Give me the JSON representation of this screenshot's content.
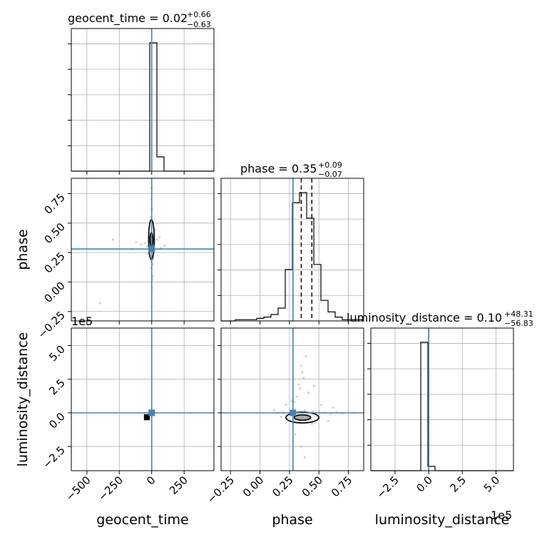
{
  "chart_data": {
    "type": "corner",
    "parameters": [
      "geocent_time",
      "phase",
      "luminosity_distance"
    ],
    "truths": {
      "geocent_time": 0,
      "phase": 0.28,
      "luminosity_distance": 0
    },
    "truth_color": "#4682b4",
    "grid": true,
    "titles": {
      "geocent_time": {
        "prefix": "geocent_time = 0.02",
        "plus": "+0.66",
        "minus": "−0.63"
      },
      "phase": {
        "prefix": "phase = 0.35",
        "plus": "+0.09",
        "minus": "−0.07"
      },
      "luminosity_distance": {
        "prefix": "luminosity_distance = 0.10",
        "plus": "+48.31",
        "minus": "−56.83"
      }
    },
    "offset_labels": {
      "luminosity_distance_y": "1e5",
      "luminosity_distance_x": "1e5"
    },
    "axes": {
      "geocent_time": {
        "range": [
          -620,
          480
        ],
        "ticks": [
          -500,
          -250,
          0,
          250
        ],
        "tick_labels": [
          "−500",
          "−250",
          "0",
          "250"
        ]
      },
      "phase": {
        "range": [
          -0.33,
          0.88
        ],
        "ticks": [
          -0.25,
          0.0,
          0.25,
          0.5,
          0.75
        ],
        "tick_labels": [
          "−0.25",
          "0.00",
          "0.25",
          "0.50",
          "0.75"
        ]
      },
      "luminosity_distance": {
        "range": [
          -4.3,
          6.3
        ],
        "ticks": [
          -2.5,
          0.0,
          2.5,
          5.0
        ],
        "tick_labels": [
          "−2.5",
          "0.0",
          "2.5",
          "5.0"
        ]
      }
    },
    "histograms": {
      "geocent_time": {
        "bin_edges": [
          -620,
          -565,
          -510,
          -455,
          -400,
          -345,
          -290,
          -235,
          -180,
          -125,
          -70,
          -15,
          40,
          95,
          150,
          205,
          260,
          315,
          370,
          425,
          480
        ],
        "counts": [
          0,
          0,
          0,
          0,
          0,
          0,
          0,
          0,
          0,
          0,
          0,
          0.9,
          0.1,
          0,
          0,
          0,
          0,
          0,
          0,
          0
        ],
        "quantiles": [
          0.02
        ]
      },
      "phase": {
        "bin_edges": [
          -0.33,
          -0.2695,
          -0.209,
          -0.1485,
          -0.088,
          -0.0275,
          0.033,
          0.0935,
          0.154,
          0.2145,
          0.275,
          0.3355,
          0.396,
          0.4565,
          0.517,
          0.5775,
          0.638,
          0.6985,
          0.759,
          0.8195,
          0.88
        ],
        "counts": [
          0,
          0,
          0.01,
          0.01,
          0.01,
          0.02,
          0.03,
          0.05,
          0.1,
          0.4,
          0.92,
          1.0,
          0.8,
          0.44,
          0.16,
          0.07,
          0.03,
          0.01,
          0.01,
          0.01
        ],
        "quantiles": [
          0.28,
          0.35,
          0.44
        ]
      },
      "luminosity_distance": {
        "bin_edges": [
          -4.3,
          -3.77,
          -3.24,
          -2.71,
          -2.18,
          -1.65,
          -1.12,
          -0.59,
          -0.06,
          0.47,
          1.0,
          1.53,
          2.06,
          2.59,
          3.12,
          3.65,
          4.18,
          4.71,
          5.24,
          5.77,
          6.3
        ],
        "counts": [
          0,
          0,
          0,
          0,
          0,
          0,
          0,
          0.9,
          0.03,
          0,
          0,
          0,
          0,
          0,
          0,
          0,
          0,
          0,
          0,
          0
        ],
        "quantiles": [
          0.0
        ]
      }
    },
    "scatter": {
      "geocent_time_phase": [
        [
          -3,
          0.41
        ],
        [
          2,
          0.39
        ],
        [
          6,
          0.33
        ],
        [
          -8,
          0.3
        ],
        [
          10,
          0.28
        ],
        [
          -12,
          0.45
        ],
        [
          4,
          0.22
        ],
        [
          -6,
          0.36
        ],
        [
          15,
          0.25
        ],
        [
          -2,
          0.5
        ],
        [
          8,
          0.19
        ],
        [
          -15,
          0.38
        ],
        [
          1,
          0.62
        ],
        [
          -4,
          0.12
        ],
        [
          12,
          0.42
        ],
        [
          -10,
          0.27
        ],
        [
          5,
          0.05
        ],
        [
          -1,
          0.7
        ],
        [
          20,
          0.34
        ],
        [
          -20,
          0.31
        ],
        [
          -50,
          0.33
        ],
        [
          40,
          0.36
        ],
        [
          -35,
          0.3
        ],
        [
          60,
          0.38
        ],
        [
          -80,
          0.32
        ],
        [
          70,
          0.29
        ],
        [
          -120,
          0.34
        ],
        [
          100,
          0.31
        ],
        [
          -300,
          0.36
        ],
        [
          -150,
          0.28
        ],
        [
          0,
          0.8
        ],
        [
          2,
          -0.05
        ],
        [
          -5,
          0.55
        ],
        [
          7,
          0.15
        ],
        [
          25,
          0.44
        ],
        [
          -28,
          0.24
        ],
        [
          -400,
          -0.18
        ],
        [
          3,
          0.02
        ],
        [
          -9,
          0.47
        ],
        [
          11,
          0.21
        ]
      ],
      "geocent_time_luminosity_distance": [
        [
          -5,
          -0.2
        ],
        [
          5,
          -0.1
        ],
        [
          -10,
          0.05
        ],
        [
          10,
          0.1
        ],
        [
          0,
          0.0
        ],
        [
          -15,
          -0.3
        ],
        [
          15,
          0.2
        ],
        [
          -3,
          -0.15
        ]
      ],
      "phase_luminosity_distance": [
        [
          0.32,
          -0.4
        ],
        [
          0.36,
          -0.3
        ],
        [
          0.4,
          -0.2
        ],
        [
          0.28,
          -0.1
        ],
        [
          0.45,
          0.1
        ],
        [
          0.5,
          0.05
        ],
        [
          0.3,
          -0.5
        ],
        [
          0.38,
          0.2
        ],
        [
          0.55,
          0.0
        ],
        [
          0.6,
          -0.1
        ],
        [
          0.25,
          0.0
        ],
        [
          0.42,
          -0.35
        ],
        [
          0.48,
          -0.25
        ],
        [
          0.34,
          -0.45
        ],
        [
          0.65,
          0.05
        ],
        [
          0.7,
          -0.05
        ],
        [
          0.2,
          0.02
        ],
        [
          0.15,
          0.0
        ],
        [
          0.35,
          3.5
        ],
        [
          0.37,
          2.6
        ],
        [
          0.34,
          1.8
        ],
        [
          0.31,
          1.2
        ],
        [
          0.39,
          4.2
        ],
        [
          0.33,
          2.1
        ],
        [
          0.36,
          3.0
        ],
        [
          0.29,
          0.8
        ],
        [
          0.41,
          1.5
        ],
        [
          0.35,
          -2.5
        ],
        [
          0.38,
          -3.3
        ],
        [
          0.3,
          -1.6
        ],
        [
          0.44,
          -0.8
        ],
        [
          0.27,
          0.9
        ],
        [
          0.46,
          2.0
        ],
        [
          0.52,
          0.6
        ],
        [
          0.22,
          0.6
        ],
        [
          0.58,
          -0.6
        ],
        [
          0.62,
          0.4
        ],
        [
          0.12,
          0.2
        ],
        [
          0.18,
          -0.3
        ],
        [
          0.8,
          0.0
        ]
      ]
    },
    "contours": {
      "geocent_time_phase": {
        "center": [
          -2,
          0.36
        ],
        "levels": [
          [
            22,
            0.17
          ],
          [
            12,
            0.06
          ]
        ],
        "core": [
          [
            -6,
            0.33
          ],
          [
            2,
            0.4
          ]
        ]
      },
      "phase_luminosity_distance": {
        "center": [
          0.36,
          -0.35
        ],
        "levels": [
          [
            0.14,
            0.4
          ],
          [
            0.07,
            0.2
          ]
        ]
      },
      "geocent_time_luminosity_distance": {
        "core": [
          [
            -60,
            -0.55
          ],
          [
            -15,
            -0.1
          ]
        ]
      }
    }
  }
}
